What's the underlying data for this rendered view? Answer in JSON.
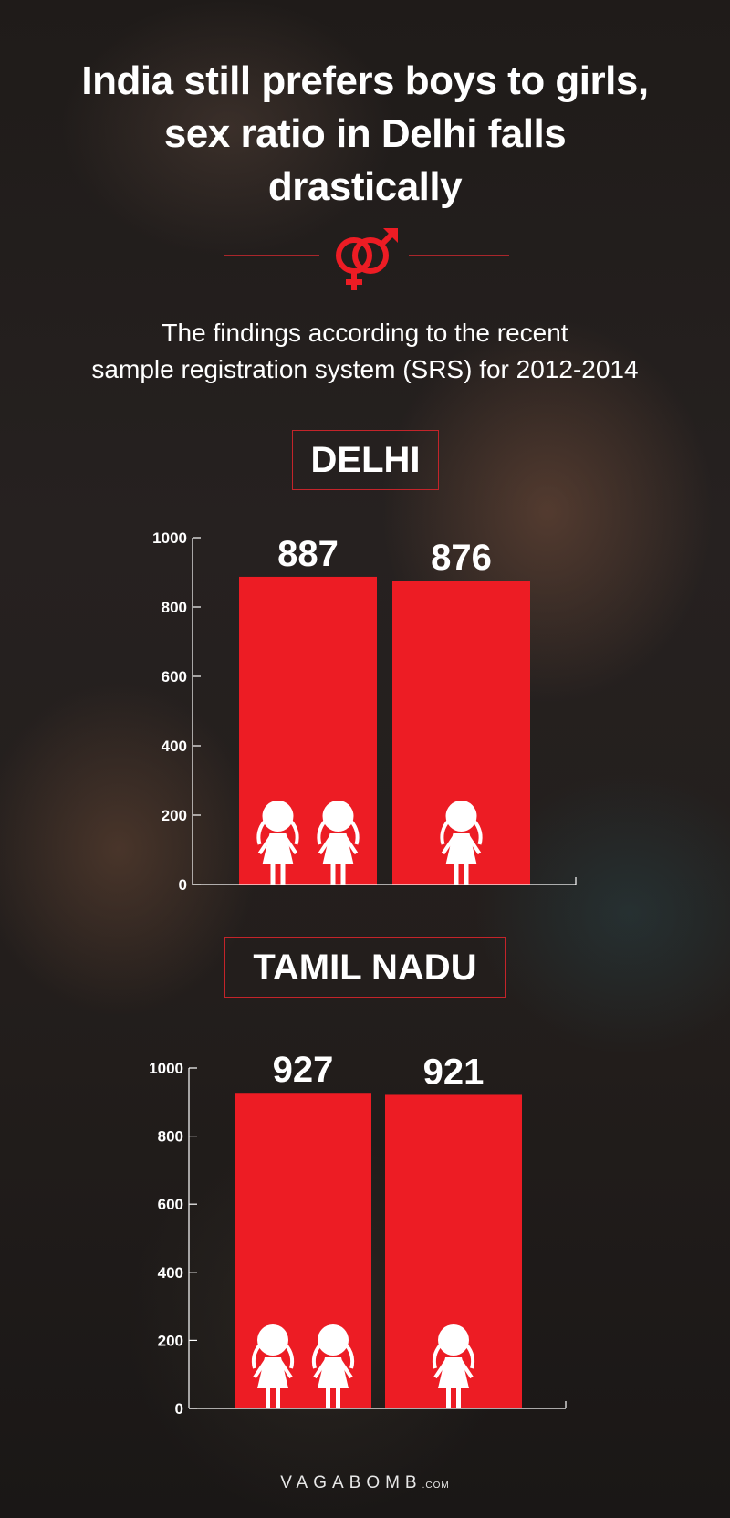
{
  "header": {
    "title_lines": [
      "India still prefers boys to girls,",
      "sex ratio in Delhi falls",
      "drastically"
    ],
    "subtitle_lines": [
      "The findings according to the recent",
      "sample registration system (SRS) for 2012-2014"
    ]
  },
  "colors": {
    "accent": "#ed1c24",
    "text": "#ffffff",
    "border": "#c4242a"
  },
  "icons": {
    "gender": "female-male-symbol-icon",
    "girl": "girl-figure-icon"
  },
  "brand": {
    "name": "VAGABOMB",
    "suffix": ".COM"
  },
  "chart_data": [
    {
      "type": "bar",
      "title": "DELHI",
      "categories": [
        "",
        ""
      ],
      "values": [
        887,
        876
      ],
      "data_labels": [
        "887",
        "876"
      ],
      "girl_icons_per_bar": [
        2,
        1
      ],
      "ylim": [
        0,
        1000
      ],
      "yticks": [
        0,
        200,
        400,
        600,
        800,
        1000
      ],
      "xlabel": "",
      "ylabel": "",
      "grid": false
    },
    {
      "type": "bar",
      "title": "TAMIL NADU",
      "categories": [
        "",
        ""
      ],
      "values": [
        927,
        921
      ],
      "data_labels": [
        "927",
        "921"
      ],
      "girl_icons_per_bar": [
        2,
        1
      ],
      "ylim": [
        0,
        1000
      ],
      "yticks": [
        0,
        200,
        400,
        600,
        800,
        1000
      ],
      "xlabel": "",
      "ylabel": "",
      "grid": false
    }
  ]
}
